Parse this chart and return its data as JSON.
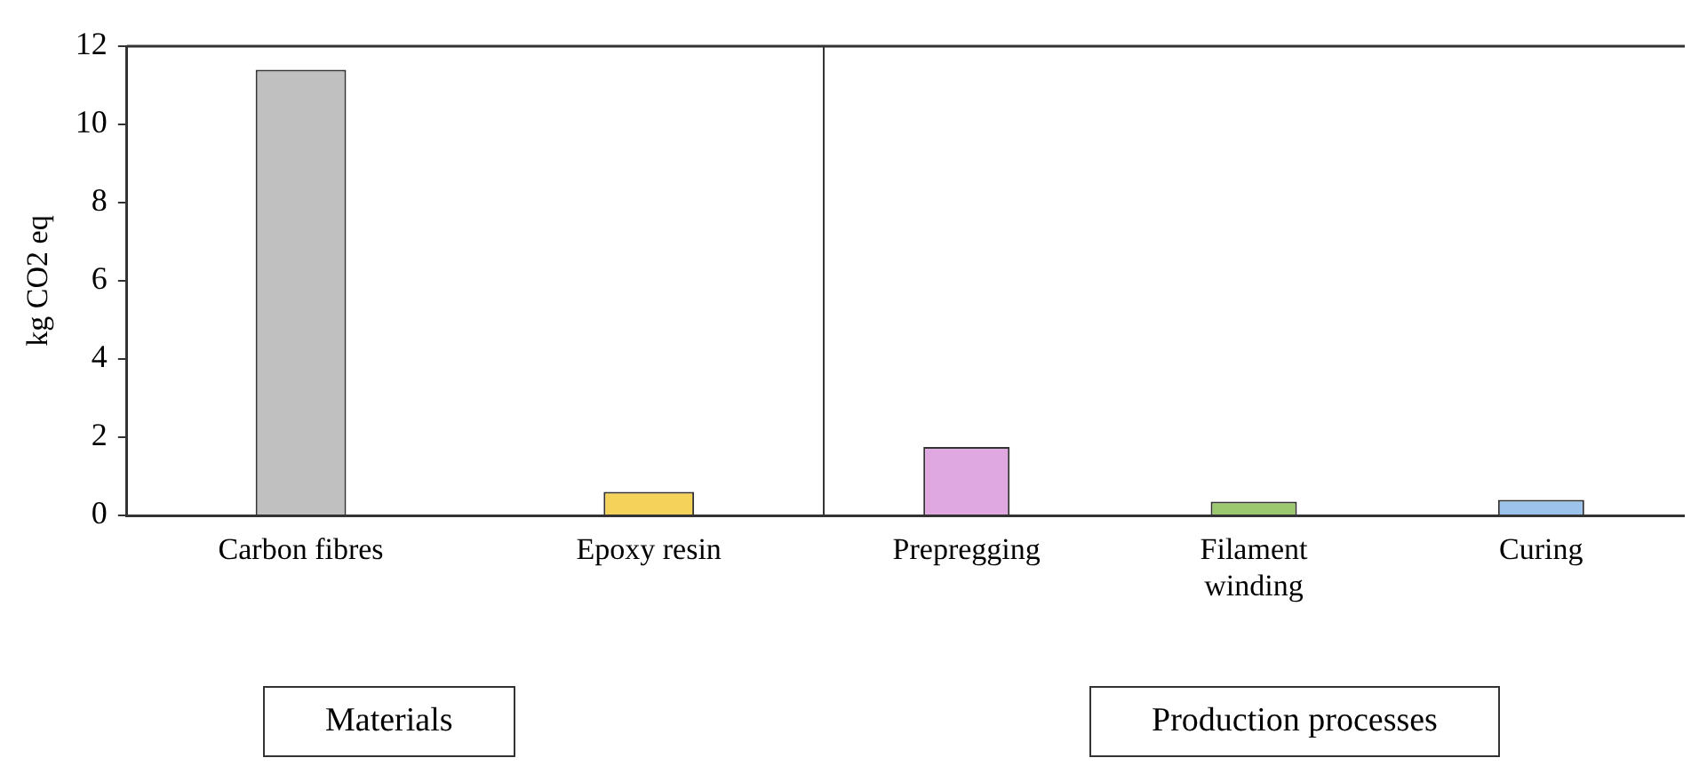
{
  "chart_data": [
    {
      "type": "bar",
      "ylabel": "kg CO2 eq",
      "categories": [
        "Carbon fibres",
        "Epoxy resin"
      ],
      "values": [
        11.4,
        0.6
      ],
      "colors": [
        "#c0c0c0",
        "#f5d25a"
      ],
      "ylim": [
        0,
        12
      ],
      "yticks": [
        0,
        2,
        4,
        6,
        8,
        10,
        12
      ],
      "grid": false,
      "legend": false,
      "annotations": [
        "Materials"
      ]
    },
    {
      "type": "bar",
      "categories": [
        "Prepregging",
        "Filament winding",
        "Curing"
      ],
      "values": [
        1.75,
        0.35,
        0.4
      ],
      "colors": [
        "#e0a8e0",
        "#9cc870",
        "#9cc3ec"
      ],
      "ylim": [
        0,
        12
      ],
      "yticks": [
        0,
        2,
        4,
        6,
        8,
        10,
        12
      ],
      "grid": false,
      "legend": false,
      "tick_labels": "x",
      "annotations": [
        "Production processes"
      ]
    }
  ]
}
